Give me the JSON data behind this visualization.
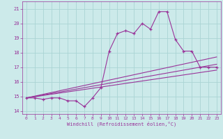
{
  "xlabel": "Windchill (Refroidissement éolien,°C)",
  "ylabel": "",
  "bg_color": "#cceaea",
  "grid_color": "#aad4d4",
  "line_color": "#993399",
  "xlim": [
    -0.5,
    23.5
  ],
  "ylim": [
    13.8,
    21.5
  ],
  "yticks": [
    14,
    15,
    16,
    17,
    18,
    19,
    20,
    21
  ],
  "xticks": [
    0,
    1,
    2,
    3,
    4,
    5,
    6,
    7,
    8,
    9,
    10,
    11,
    12,
    13,
    14,
    15,
    16,
    17,
    18,
    19,
    20,
    21,
    22,
    23
  ],
  "main_x": [
    0,
    1,
    2,
    3,
    4,
    5,
    6,
    7,
    8,
    9,
    10,
    11,
    12,
    13,
    14,
    15,
    16,
    17,
    18,
    19,
    20,
    21,
    22,
    23
  ],
  "main_y": [
    14.9,
    14.9,
    14.8,
    14.9,
    14.9,
    14.7,
    14.7,
    14.3,
    14.9,
    15.6,
    18.1,
    19.3,
    19.5,
    19.3,
    20.0,
    19.6,
    20.8,
    20.8,
    18.9,
    18.1,
    18.1,
    17.0,
    17.0,
    17.0
  ],
  "line1_x": [
    0,
    23
  ],
  "line1_y": [
    14.9,
    17.2
  ],
  "line2_x": [
    0,
    23
  ],
  "line2_y": [
    14.9,
    17.7
  ],
  "line3_x": [
    0,
    23
  ],
  "line3_y": [
    14.9,
    16.8
  ]
}
